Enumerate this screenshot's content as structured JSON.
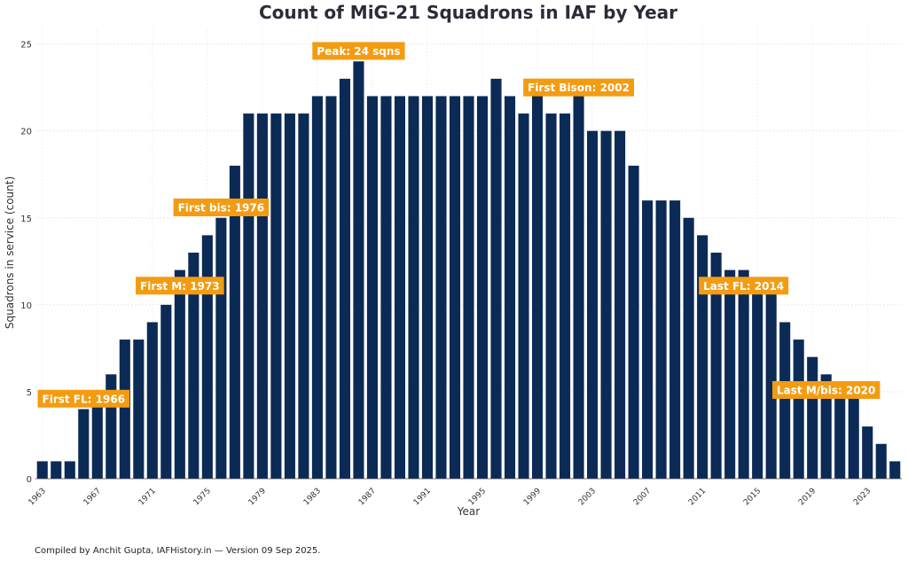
{
  "chart_data": {
    "type": "bar",
    "title": "Count of MiG-21 Squadrons in IAF by Year",
    "xlabel": "Year",
    "ylabel": "Squadrons in service (count)",
    "ylim": [
      0,
      26
    ],
    "yticks": [
      0,
      5,
      10,
      15,
      20,
      25
    ],
    "grid": true,
    "bar_color": "#0b2a55",
    "annotation_color": "#f39c12",
    "categories": [
      1963,
      1964,
      1965,
      1966,
      1967,
      1968,
      1969,
      1970,
      1971,
      1972,
      1973,
      1974,
      1975,
      1976,
      1977,
      1978,
      1979,
      1980,
      1981,
      1982,
      1983,
      1984,
      1985,
      1986,
      1987,
      1988,
      1989,
      1990,
      1991,
      1992,
      1993,
      1994,
      1995,
      1996,
      1997,
      1998,
      1999,
      2000,
      2001,
      2002,
      2003,
      2004,
      2005,
      2006,
      2007,
      2008,
      2009,
      2010,
      2011,
      2012,
      2013,
      2014,
      2015,
      2016,
      2017,
      2018,
      2019,
      2020,
      2021,
      2022,
      2023,
      2024,
      2025
    ],
    "values": [
      1,
      1,
      1,
      4,
      5,
      6,
      8,
      8,
      9,
      10,
      12,
      13,
      14,
      15,
      18,
      21,
      21,
      21,
      21,
      21,
      22,
      22,
      23,
      24,
      22,
      22,
      22,
      22,
      22,
      22,
      22,
      22,
      22,
      23,
      22,
      21,
      22,
      21,
      21,
      22,
      20,
      20,
      20,
      18,
      16,
      16,
      16,
      15,
      14,
      13,
      12,
      12,
      11,
      11,
      9,
      8,
      7,
      6,
      5,
      5,
      3,
      2,
      1
    ],
    "xtick_labels": [
      "1963",
      "1967",
      "1971",
      "1975",
      "1979",
      "1983",
      "1987",
      "1991",
      "1995",
      "1999",
      "2003",
      "2007",
      "2011",
      "2015",
      "2019",
      "2023"
    ],
    "annotations": [
      {
        "text": "First FL: 1966",
        "year": 1966,
        "y": 4.6
      },
      {
        "text": "First M: 1973",
        "year": 1973,
        "y": 11.1
      },
      {
        "text": "First bis: 1976",
        "year": 1976,
        "y": 15.6
      },
      {
        "text": "Peak: 24 sqns",
        "year": 1986,
        "y": 24.6
      },
      {
        "text": "First Bison: 2002",
        "year": 2002,
        "y": 22.5
      },
      {
        "text": "Last FL: 2014",
        "year": 2014,
        "y": 11.1
      },
      {
        "text": "Last M/bis: 2020",
        "year": 2020,
        "y": 5.1
      }
    ]
  },
  "footer": "Compiled by Anchit Gupta, IAFHistory.in — Version 09 Sep 2025."
}
